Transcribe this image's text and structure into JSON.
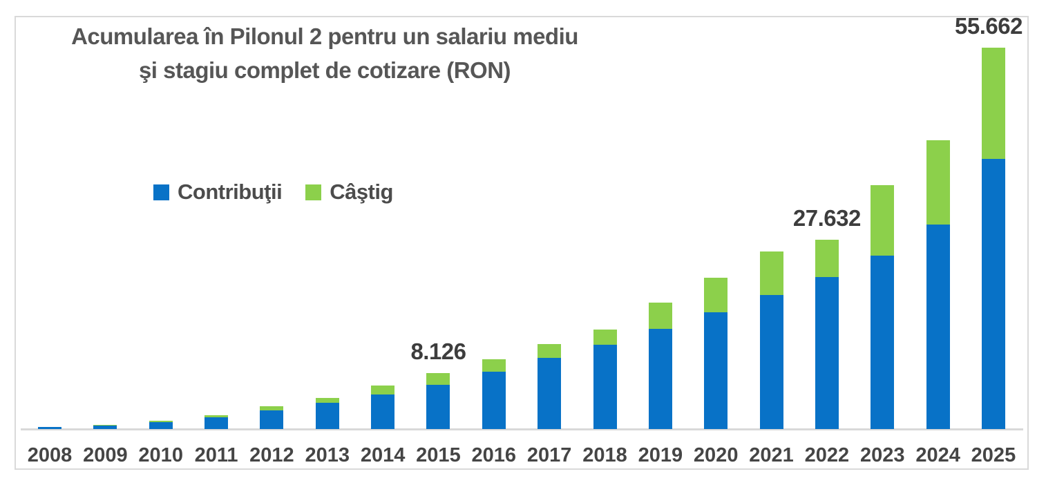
{
  "header": {
    "title_line1": "Acumularea în Pilonul 2 pentru un salariu mediu",
    "title_line2": "şi stagiu complet de cotizare (RON)"
  },
  "colors": {
    "contributions_blue": "#0872c7",
    "gain_green": "#8cd04b",
    "frame_border": "#d9d9d9",
    "axis_line": "#d9d9d9",
    "title_text": "#565656",
    "axis_text": "#454545",
    "data_label_text": "#3d3d3d"
  },
  "chart_data": {
    "type": "bar",
    "stacked": true,
    "title": "Acumularea în Pilonul 2 pentru un salariu mediu şi stagiu complet de cotizare (RON)",
    "unit": "RON",
    "categories": [
      "2008",
      "2009",
      "2010",
      "2011",
      "2012",
      "2013",
      "2014",
      "2015",
      "2016",
      "2017",
      "2018",
      "2019",
      "2020",
      "2021",
      "2022",
      "2023",
      "2024",
      "2025"
    ],
    "series": [
      {
        "name": "Contribuţii",
        "color": "#0872c7",
        "values": [
          280,
          520,
          1040,
          1730,
          2760,
          3790,
          5040,
          6420,
          8380,
          10380,
          12320,
          14590,
          17020,
          19590,
          22190,
          25340,
          29870,
          39420
        ]
      },
      {
        "name": "Câştig",
        "color": "#8cd04b",
        "values": [
          30,
          105,
          210,
          310,
          520,
          800,
          1350,
          1706,
          1760,
          2070,
          2170,
          3870,
          5100,
          6310,
          5442,
          10300,
          12280,
          16242
        ]
      }
    ],
    "totals": [
      310,
      625,
      1250,
      2040,
      3280,
      4590,
      6390,
      8126,
      10140,
      12450,
      14490,
      18460,
      22120,
      25900,
      27632,
      35640,
      42150,
      55662
    ],
    "data_labels": [
      {
        "category": "2015",
        "text": "8.126"
      },
      {
        "category": "2022",
        "text": "27.632"
      },
      {
        "category": "2025",
        "text": "55.662"
      }
    ],
    "ylim": [
      0,
      56000
    ],
    "gridlines": false,
    "y_axis_visible": false,
    "legend_position": "upper-left-inside"
  }
}
